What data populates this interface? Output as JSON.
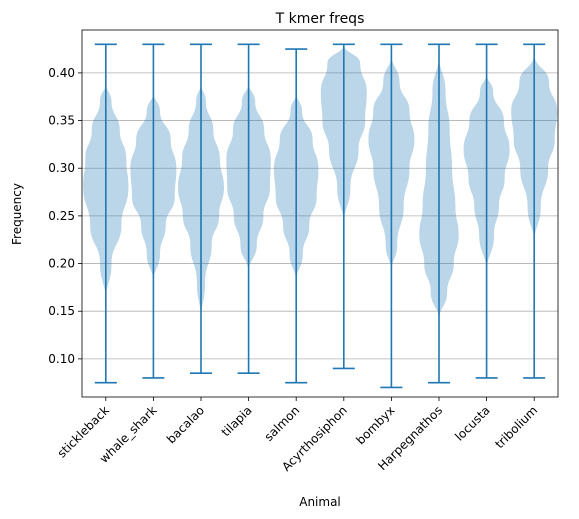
{
  "chart_data": {
    "type": "violin",
    "title": "T kmer freqs",
    "xlabel": "Animal",
    "ylabel": "Frequency",
    "ylim": [
      0.06,
      0.445
    ],
    "yticks": [
      0.1,
      0.15,
      0.2,
      0.25,
      0.3,
      0.35,
      0.4
    ],
    "ytick_labels": [
      "0.10",
      "0.15",
      "0.20",
      "0.25",
      "0.30",
      "0.35",
      "0.40"
    ],
    "grid": "horizontal",
    "colors": {
      "body": "#1f77b4",
      "body_opacity": 0.3,
      "whisker": "#1f77b4"
    },
    "categories": [
      "stickleback",
      "whale_shark",
      "bacalao",
      "tilapia",
      "salmon",
      "Acyrthosiphon",
      "bombyx",
      "Harpegnathos",
      "locusta",
      "tribolium"
    ],
    "series": [
      {
        "category": "stickleback",
        "min": 0.075,
        "max": 0.43,
        "density": [
          [
            0.16,
            0.0
          ],
          [
            0.2,
            0.14
          ],
          [
            0.24,
            0.38
          ],
          [
            0.28,
            0.55
          ],
          [
            0.31,
            0.5
          ],
          [
            0.34,
            0.34
          ],
          [
            0.37,
            0.14
          ],
          [
            0.39,
            0.0
          ]
        ]
      },
      {
        "category": "whale_shark",
        "min": 0.08,
        "max": 0.43,
        "density": [
          [
            0.18,
            0.0
          ],
          [
            0.21,
            0.16
          ],
          [
            0.24,
            0.3
          ],
          [
            0.27,
            0.52
          ],
          [
            0.3,
            0.56
          ],
          [
            0.33,
            0.42
          ],
          [
            0.36,
            0.16
          ],
          [
            0.38,
            0.0
          ]
        ]
      },
      {
        "category": "bacalao",
        "min": 0.085,
        "max": 0.43,
        "density": [
          [
            0.14,
            0.0
          ],
          [
            0.18,
            0.1
          ],
          [
            0.22,
            0.26
          ],
          [
            0.25,
            0.44
          ],
          [
            0.28,
            0.56
          ],
          [
            0.31,
            0.46
          ],
          [
            0.34,
            0.3
          ],
          [
            0.37,
            0.12
          ],
          [
            0.39,
            0.0
          ]
        ]
      },
      {
        "category": "tilapia",
        "min": 0.085,
        "max": 0.43,
        "density": [
          [
            0.19,
            0.0
          ],
          [
            0.22,
            0.2
          ],
          [
            0.25,
            0.36
          ],
          [
            0.28,
            0.52
          ],
          [
            0.31,
            0.54
          ],
          [
            0.34,
            0.38
          ],
          [
            0.37,
            0.16
          ],
          [
            0.39,
            0.0
          ]
        ]
      },
      {
        "category": "salmon",
        "min": 0.075,
        "max": 0.425,
        "density": [
          [
            0.18,
            0.0
          ],
          [
            0.21,
            0.16
          ],
          [
            0.24,
            0.32
          ],
          [
            0.27,
            0.5
          ],
          [
            0.3,
            0.54
          ],
          [
            0.33,
            0.4
          ],
          [
            0.36,
            0.14
          ],
          [
            0.38,
            0.0
          ]
        ]
      },
      {
        "category": "Acyrthosiphon",
        "min": 0.09,
        "max": 0.43,
        "density": [
          [
            0.24,
            0.0
          ],
          [
            0.28,
            0.16
          ],
          [
            0.32,
            0.36
          ],
          [
            0.35,
            0.52
          ],
          [
            0.38,
            0.56
          ],
          [
            0.41,
            0.4
          ],
          [
            0.43,
            0.0
          ]
        ]
      },
      {
        "category": "bombyx",
        "min": 0.07,
        "max": 0.43,
        "density": [
          [
            0.19,
            0.0
          ],
          [
            0.22,
            0.14
          ],
          [
            0.26,
            0.3
          ],
          [
            0.3,
            0.44
          ],
          [
            0.33,
            0.56
          ],
          [
            0.36,
            0.44
          ],
          [
            0.39,
            0.2
          ],
          [
            0.42,
            0.0
          ]
        ]
      },
      {
        "category": "Harpegnathos",
        "min": 0.075,
        "max": 0.43,
        "density": [
          [
            0.14,
            0.0
          ],
          [
            0.17,
            0.2
          ],
          [
            0.2,
            0.36
          ],
          [
            0.23,
            0.48
          ],
          [
            0.26,
            0.4
          ],
          [
            0.3,
            0.32
          ],
          [
            0.34,
            0.26
          ],
          [
            0.38,
            0.16
          ],
          [
            0.42,
            0.0
          ]
        ]
      },
      {
        "category": "locusta",
        "min": 0.08,
        "max": 0.43,
        "density": [
          [
            0.19,
            0.0
          ],
          [
            0.23,
            0.18
          ],
          [
            0.26,
            0.3
          ],
          [
            0.29,
            0.44
          ],
          [
            0.32,
            0.56
          ],
          [
            0.35,
            0.42
          ],
          [
            0.38,
            0.16
          ],
          [
            0.4,
            0.0
          ]
        ]
      },
      {
        "category": "tribolium",
        "min": 0.08,
        "max": 0.43,
        "density": [
          [
            0.22,
            0.0
          ],
          [
            0.26,
            0.16
          ],
          [
            0.3,
            0.34
          ],
          [
            0.33,
            0.5
          ],
          [
            0.36,
            0.56
          ],
          [
            0.39,
            0.36
          ],
          [
            0.42,
            0.0
          ]
        ]
      }
    ]
  }
}
